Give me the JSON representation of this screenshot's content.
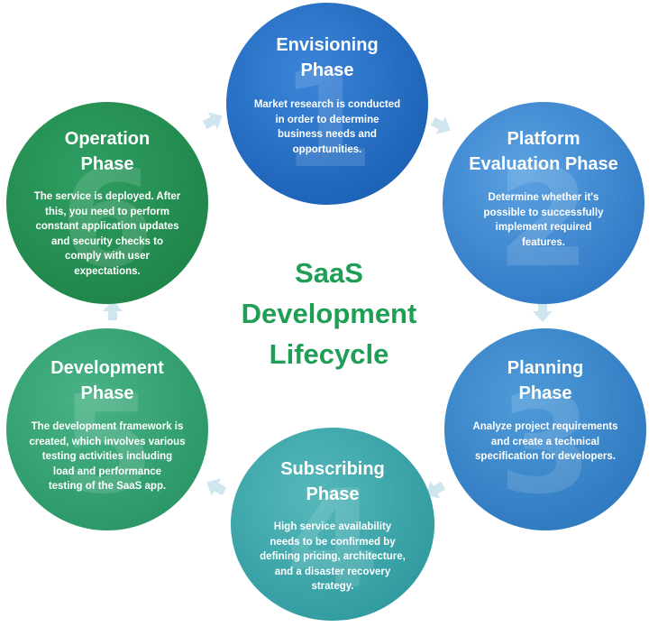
{
  "title_lines": [
    "SaaS",
    "Development",
    "Lifecycle"
  ],
  "phases": [
    {
      "number": "1",
      "title": [
        "Envisioning",
        "Phase"
      ],
      "description": [
        "Market research is conducted",
        "in order to determine",
        "business needs and",
        "opportunities."
      ]
    },
    {
      "number": "2",
      "title": [
        "Platform",
        "Evaluation Phase"
      ],
      "description": [
        "Determine whether it's",
        "possible to successfully",
        "implement required",
        "features."
      ]
    },
    {
      "number": "3",
      "title": [
        "Planning",
        "Phase"
      ],
      "description": [
        "Analyze project requirements",
        "and create a technical",
        "specification for developers."
      ]
    },
    {
      "number": "4",
      "title": [
        "Subscribing",
        "Phase"
      ],
      "description": [
        "High service availability",
        "needs to be confirmed by",
        "defining pricing, architecture,",
        "and a disaster recovery",
        "strategy."
      ]
    },
    {
      "number": "5",
      "title": [
        "Development",
        "Phase"
      ],
      "description": [
        "The development framework is",
        "created, which involves various",
        "testing activities including",
        "load and performance",
        "testing of the SaaS app."
      ]
    },
    {
      "number": "6",
      "title": [
        "Operation",
        "Phase"
      ],
      "description": [
        "The service is deployed. After",
        "this, you need to perform",
        "constant application updates",
        "and security checks to",
        "comply with user",
        "expectations."
      ]
    }
  ],
  "colors": {
    "title_green": "#1f9e55",
    "arrow": "#cfe6ee"
  }
}
